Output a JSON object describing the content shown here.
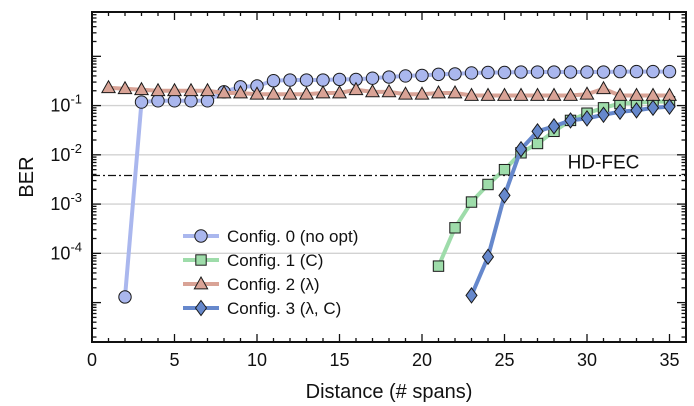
{
  "chart_data": {
    "type": "line",
    "title": "",
    "xlabel": "Distance (# spans)",
    "ylabel": "BER",
    "xlim": [
      0,
      36
    ],
    "ylim_log10": [
      -5.8,
      0.9
    ],
    "y_scale": "log",
    "x_ticks": [
      "0",
      "5",
      "10",
      "15",
      "20",
      "25",
      "30",
      "35"
    ],
    "y_tick_values": [
      -4,
      -3,
      -2,
      -1
    ],
    "y_tick_labels": [
      {
        "base": "10",
        "exp": "-4"
      },
      {
        "base": "10",
        "exp": "-3"
      },
      {
        "base": "10",
        "exp": "-2"
      },
      {
        "base": "10",
        "exp": "-1"
      }
    ],
    "grid": "horizontal",
    "legend_position": "bottom-left",
    "annotations": [
      {
        "text": "HD-FEC",
        "ber": 0.0038
      }
    ],
    "series": [
      {
        "name": "Config. 0 (no opt)",
        "color": "#aab7ee",
        "marker": "circle",
        "points": [
          [
            2,
            1.3e-05
          ],
          [
            3,
            0.118
          ],
          [
            4,
            0.125
          ],
          [
            5,
            0.125
          ],
          [
            6,
            0.125
          ],
          [
            7,
            0.125
          ],
          [
            8,
            0.19
          ],
          [
            9,
            0.24
          ],
          [
            10,
            0.25
          ],
          [
            11,
            0.32
          ],
          [
            12,
            0.33
          ],
          [
            13,
            0.33
          ],
          [
            14,
            0.33
          ],
          [
            15,
            0.34
          ],
          [
            16,
            0.34
          ],
          [
            17,
            0.36
          ],
          [
            18,
            0.38
          ],
          [
            19,
            0.4
          ],
          [
            20,
            0.41
          ],
          [
            21,
            0.43
          ],
          [
            22,
            0.44
          ],
          [
            23,
            0.46
          ],
          [
            24,
            0.47
          ],
          [
            25,
            0.47
          ],
          [
            26,
            0.48
          ],
          [
            27,
            0.48
          ],
          [
            28,
            0.48
          ],
          [
            29,
            0.48
          ],
          [
            30,
            0.48
          ],
          [
            31,
            0.48
          ],
          [
            32,
            0.49
          ],
          [
            33,
            0.49
          ],
          [
            34,
            0.49
          ],
          [
            35,
            0.49
          ]
        ]
      },
      {
        "name": "Config. 1 (C)",
        "color": "#9edcaa",
        "marker": "square",
        "points": [
          [
            21,
            5.5e-05
          ],
          [
            22,
            0.00033
          ],
          [
            23,
            0.0011
          ],
          [
            24,
            0.0025
          ],
          [
            25,
            0.005
          ],
          [
            26,
            0.011
          ],
          [
            27,
            0.017
          ],
          [
            28,
            0.03
          ],
          [
            29,
            0.05
          ],
          [
            30,
            0.07
          ],
          [
            31,
            0.09
          ],
          [
            32,
            0.11
          ],
          [
            33,
            0.115
          ],
          [
            34,
            0.12
          ],
          [
            35,
            0.12
          ]
        ]
      },
      {
        "name": "Config. 2 (λ)",
        "color": "#d9a396",
        "marker": "triangle",
        "points": [
          [
            1,
            0.23
          ],
          [
            2,
            0.22
          ],
          [
            3,
            0.21
          ],
          [
            4,
            0.2
          ],
          [
            5,
            0.2
          ],
          [
            6,
            0.2
          ],
          [
            7,
            0.2
          ],
          [
            8,
            0.18
          ],
          [
            9,
            0.18
          ],
          [
            10,
            0.17
          ],
          [
            11,
            0.17
          ],
          [
            12,
            0.17
          ],
          [
            13,
            0.17
          ],
          [
            14,
            0.18
          ],
          [
            15,
            0.18
          ],
          [
            16,
            0.21
          ],
          [
            17,
            0.19
          ],
          [
            18,
            0.19
          ],
          [
            19,
            0.17
          ],
          [
            20,
            0.17
          ],
          [
            21,
            0.18
          ],
          [
            22,
            0.18
          ],
          [
            23,
            0.16
          ],
          [
            24,
            0.16
          ],
          [
            25,
            0.16
          ],
          [
            26,
            0.16
          ],
          [
            27,
            0.16
          ],
          [
            28,
            0.16
          ],
          [
            29,
            0.16
          ],
          [
            30,
            0.17
          ],
          [
            31,
            0.22
          ],
          [
            32,
            0.16
          ],
          [
            33,
            0.16
          ],
          [
            34,
            0.16
          ],
          [
            35,
            0.16
          ]
        ]
      },
      {
        "name": "Config. 3 (λ, C)",
        "color": "#6688cc",
        "marker": "diamond",
        "points": [
          [
            23,
            1.4e-05
          ],
          [
            24,
            8.5e-05
          ],
          [
            25,
            0.0015
          ],
          [
            26,
            0.013
          ],
          [
            27,
            0.03
          ],
          [
            28,
            0.038
          ],
          [
            29,
            0.05
          ],
          [
            30,
            0.055
          ],
          [
            31,
            0.065
          ],
          [
            32,
            0.075
          ],
          [
            33,
            0.08
          ],
          [
            34,
            0.09
          ],
          [
            35,
            0.095
          ]
        ]
      }
    ]
  }
}
